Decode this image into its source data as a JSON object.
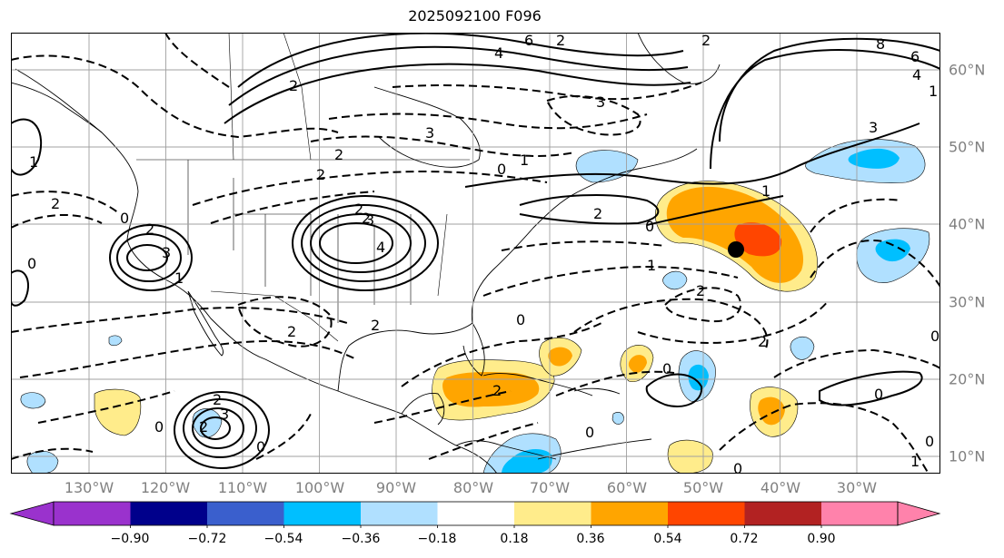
{
  "title": "2025092100 F096",
  "map": {
    "projection": "PlateCarree",
    "lon_range": [
      -139,
      -18
    ],
    "lat_range": [
      8,
      65
    ],
    "colors": {
      "land_outline": "#000000",
      "gridline": "#a0a0a0",
      "contour": "#000000",
      "marker": "#000000"
    },
    "marker_label": "storm-center-marker",
    "contour_labels": [
      "6",
      "4",
      "2",
      "2",
      "2",
      "3",
      "0",
      "1",
      "4",
      "3",
      "2",
      "0",
      "2",
      "2",
      "1",
      "3",
      "0",
      "1",
      "2",
      "0",
      "2",
      "0",
      "2",
      "2",
      "0",
      "2",
      "3",
      "2",
      "1",
      "0",
      "2",
      "3",
      "0",
      "0",
      "0",
      "0",
      "0",
      "1",
      "8",
      "6",
      "4",
      "2",
      "2",
      "3",
      "2",
      "0",
      "2",
      "1",
      "1"
    ]
  },
  "axes": {
    "lon_labels": [
      "130°W",
      "120°W",
      "110°W",
      "100°W",
      "90°W",
      "80°W",
      "70°W",
      "60°W",
      "50°W",
      "40°W",
      "30°W"
    ],
    "lat_labels": [
      "60°N",
      "50°N",
      "40°N",
      "30°N",
      "20°N",
      "10°N"
    ]
  },
  "colorbar": {
    "colors": [
      "#9a32cd",
      "#00008b",
      "#3a5fcd",
      "#00bfff",
      "#b0e0ff",
      "#ffffff",
      "#ffec8b",
      "#ffa500",
      "#ff4500",
      "#b22222",
      "#ff82ab"
    ],
    "tick_labels": [
      "−0.90",
      "−0.72",
      "−0.54",
      "−0.36",
      "−0.18",
      "0.18",
      "0.36",
      "0.54",
      "0.72",
      "0.90"
    ]
  }
}
